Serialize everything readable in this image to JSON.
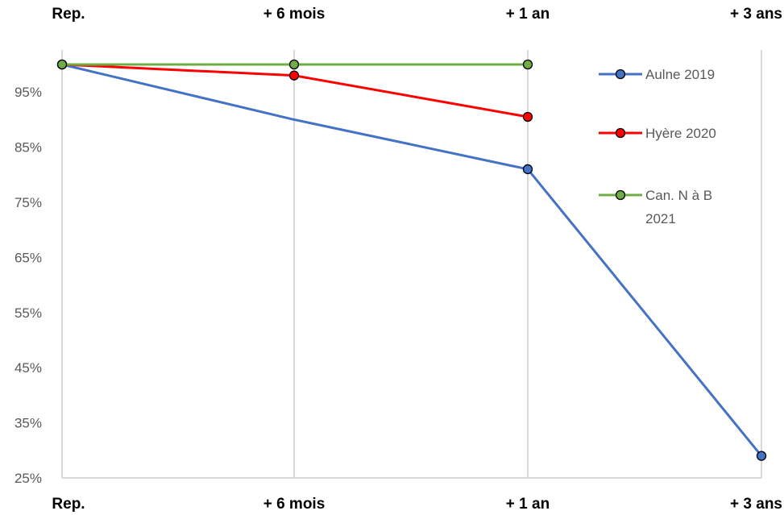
{
  "chart_data": {
    "type": "line",
    "categories": [
      "Rep.",
      "+ 6 mois",
      "+ 1 an",
      "+ 3 ans"
    ],
    "ylim": [
      0.25,
      1.0
    ],
    "yticks": [
      {
        "value": 0.25,
        "label": "25%"
      },
      {
        "value": 0.35,
        "label": "35%"
      },
      {
        "value": 0.45,
        "label": "45%"
      },
      {
        "value": 0.55,
        "label": "55%"
      },
      {
        "value": 0.65,
        "label": "65%"
      },
      {
        "value": 0.75,
        "label": "75%"
      },
      {
        "value": 0.85,
        "label": "85%"
      },
      {
        "value": 0.95,
        "label": "95%"
      }
    ],
    "grid": "vertical",
    "legend_position": "right",
    "series": [
      {
        "name": "Aulne 2019",
        "legend_lines": [
          "Aulne 2019"
        ],
        "color": "#4472C4",
        "marker_color": "#4472C4",
        "values": [
          1.0,
          0.9,
          0.81,
          0.29
        ]
      },
      {
        "name": "Hyère 2020",
        "legend_lines": [
          "Hyère 2020"
        ],
        "color": "#FF0000",
        "marker_color": "#FF0000",
        "values": [
          1.0,
          0.98,
          0.905,
          null
        ]
      },
      {
        "name": "Can. N à B 2021",
        "legend_lines": [
          "Can. N à B",
          "2021"
        ],
        "color": "#70AD47",
        "marker_color": "#70AD47",
        "values": [
          1.0,
          1.0,
          1.0,
          null
        ]
      }
    ],
    "point_markers": [
      {
        "series": 0,
        "indices": [
          0,
          2,
          3
        ]
      },
      {
        "series": 1,
        "indices": [
          0,
          1,
          2
        ]
      },
      {
        "series": 2,
        "indices": [
          0,
          1,
          2
        ]
      }
    ]
  }
}
